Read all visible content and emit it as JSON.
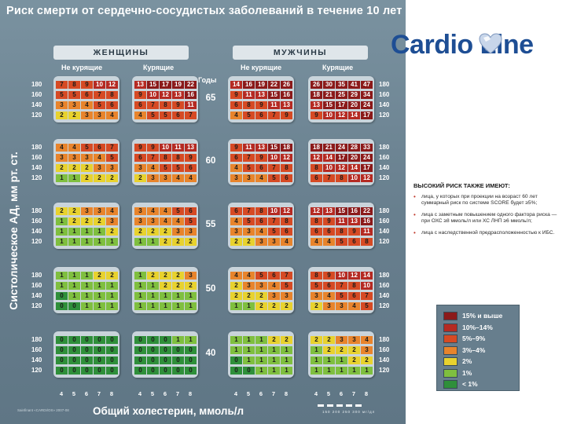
{
  "title": "Риск смерти  от сердечно-сосудистых заболеваний в течение 10 лет",
  "logo": {
    "text": "Cardio Line"
  },
  "sexes": [
    {
      "label": "ЖЕНЩИНЫ",
      "smoking_labels": [
        "Не курящие",
        "Курящие"
      ]
    },
    {
      "label": "МУЖЧИНЫ",
      "smoking_labels": [
        "Не курящие",
        "Курящие"
      ]
    }
  ],
  "age_header": "Годы",
  "y_axis_label": "Систолическое АД, мм рт. ст.",
  "x_axis_label": "Общий холестерин, ммоль/л",
  "fine_print": "Sainfinant «CARDI/OS» 2007-08",
  "scale_ticks": "150 200 250 300 мг/дл",
  "notes": {
    "heading": "ВЫСОКИЙ РИСК ТАКЖЕ ИМЕЮТ:",
    "bullet": "•",
    "items": [
      "лица, у которых при проекции на возраст 60 лет суммарный риск по системе SCORE будет ≥5%;",
      "лица с заметным повышением одного фактора риска — при ОХС ≥8 ммоль/л или ХС ЛНП ≥6 ммоль/л;",
      "лица с наследственной предрасположенностью к ИБС."
    ]
  },
  "legend": [
    {
      "label": "15% и выше",
      "color": "#8b1a1a"
    },
    {
      "label": "10%–14%",
      "color": "#b52a22"
    },
    {
      "label": "5%–9%",
      "color": "#d64a24"
    },
    {
      "label": "3%–4%",
      "color": "#e8842c"
    },
    {
      "label": "2%",
      "color": "#e8d22e"
    },
    {
      "label": "1%",
      "color": "#7fbf3f"
    },
    {
      "label": "< 1%",
      "color": "#2f8f3a"
    }
  ],
  "chart_data": {
    "type": "heatmap",
    "title": "Риск смерти  от сердечно-сосудистых заболеваний в течение 10 лет",
    "xlabel": "Общий холестерин, ммоль/л",
    "ylabel": "Систолическое АД, мм рт. ст.",
    "cholesterol": [
      "4",
      "5",
      "6",
      "7",
      "8"
    ],
    "sbp": [
      "180",
      "160",
      "140",
      "120"
    ],
    "ages": [
      "65",
      "60",
      "55",
      "50",
      "40"
    ],
    "groups": [
      "Женщины, не курящие",
      "Женщины, курящие",
      "Мужчины, не курящие",
      "Мужчины, курящие"
    ],
    "values": [
      [
        [
          [
            7,
            8,
            9,
            10,
            12
          ],
          [
            5,
            5,
            6,
            7,
            8
          ],
          [
            3,
            3,
            4,
            5,
            6
          ],
          [
            2,
            2,
            3,
            3,
            4
          ]
        ],
        [
          [
            13,
            15,
            17,
            19,
            22
          ],
          [
            9,
            10,
            12,
            13,
            16
          ],
          [
            6,
            7,
            8,
            9,
            11
          ],
          [
            4,
            5,
            5,
            6,
            7
          ]
        ],
        [
          [
            14,
            16,
            19,
            22,
            26
          ],
          [
            9,
            11,
            13,
            15,
            16
          ],
          [
            6,
            8,
            9,
            11,
            13
          ],
          [
            4,
            5,
            6,
            7,
            9
          ]
        ],
        [
          [
            26,
            30,
            35,
            41,
            47
          ],
          [
            18,
            21,
            25,
            29,
            34
          ],
          [
            13,
            15,
            17,
            20,
            24
          ],
          [
            9,
            10,
            12,
            14,
            17
          ]
        ]
      ],
      [
        [
          [
            4,
            4,
            5,
            6,
            7
          ],
          [
            3,
            3,
            3,
            4,
            5
          ],
          [
            2,
            2,
            2,
            3,
            3
          ],
          [
            1,
            1,
            2,
            2,
            2
          ]
        ],
        [
          [
            9,
            9,
            10,
            11,
            13
          ],
          [
            6,
            7,
            8,
            8,
            9
          ],
          [
            3,
            4,
            5,
            5,
            6
          ],
          [
            2,
            3,
            3,
            4,
            4
          ]
        ],
        [
          [
            9,
            11,
            13,
            15,
            18
          ],
          [
            6,
            7,
            9,
            10,
            12
          ],
          [
            4,
            5,
            6,
            7,
            8
          ],
          [
            3,
            3,
            4,
            5,
            6
          ]
        ],
        [
          [
            18,
            21,
            24,
            28,
            33
          ],
          [
            12,
            14,
            17,
            20,
            24
          ],
          [
            8,
            10,
            12,
            14,
            17
          ],
          [
            6,
            7,
            8,
            10,
            12
          ]
        ]
      ],
      [
        [
          [
            2,
            2,
            3,
            3,
            4
          ],
          [
            1,
            2,
            2,
            2,
            3
          ],
          [
            1,
            1,
            1,
            1,
            2
          ],
          [
            1,
            1,
            1,
            1,
            1
          ]
        ],
        [
          [
            3,
            4,
            4,
            5,
            6
          ],
          [
            3,
            3,
            4,
            4,
            5
          ],
          [
            2,
            2,
            2,
            3,
            3
          ],
          [
            1,
            1,
            2,
            2,
            2
          ]
        ],
        [
          [
            6,
            7,
            8,
            10,
            12
          ],
          [
            4,
            5,
            6,
            7,
            8
          ],
          [
            3,
            3,
            4,
            5,
            6
          ],
          [
            2,
            2,
            3,
            3,
            4
          ]
        ],
        [
          [
            12,
            13,
            15,
            16,
            22
          ],
          [
            8,
            9,
            11,
            13,
            16
          ],
          [
            6,
            6,
            8,
            9,
            11
          ],
          [
            4,
            4,
            5,
            6,
            8
          ]
        ]
      ],
      [
        [
          [
            1,
            1,
            1,
            2,
            2
          ],
          [
            1,
            1,
            1,
            1,
            1
          ],
          [
            0,
            1,
            1,
            1,
            1
          ],
          [
            0,
            0,
            1,
            1,
            1
          ]
        ],
        [
          [
            1,
            2,
            2,
            2,
            3
          ],
          [
            1,
            1,
            2,
            2,
            2
          ],
          [
            1,
            1,
            1,
            1,
            1
          ],
          [
            1,
            1,
            1,
            1,
            1
          ]
        ],
        [
          [
            4,
            4,
            5,
            6,
            7
          ],
          [
            2,
            3,
            3,
            4,
            5
          ],
          [
            2,
            2,
            2,
            3,
            3
          ],
          [
            1,
            1,
            2,
            2,
            2
          ]
        ],
        [
          [
            8,
            9,
            10,
            12,
            14
          ],
          [
            5,
            6,
            7,
            8,
            10
          ],
          [
            3,
            4,
            5,
            6,
            7
          ],
          [
            2,
            3,
            3,
            4,
            5
          ]
        ]
      ],
      [
        [
          [
            0,
            0,
            0,
            0,
            0
          ],
          [
            0,
            0,
            0,
            0,
            0
          ],
          [
            0,
            0,
            0,
            0,
            0
          ],
          [
            0,
            0,
            0,
            0,
            0
          ]
        ],
        [
          [
            0,
            0,
            0,
            1,
            1
          ],
          [
            0,
            0,
            0,
            0,
            0
          ],
          [
            0,
            0,
            0,
            0,
            0
          ],
          [
            0,
            0,
            0,
            0,
            0
          ]
        ],
        [
          [
            1,
            1,
            1,
            2,
            2
          ],
          [
            1,
            1,
            1,
            1,
            1
          ],
          [
            0,
            1,
            1,
            1,
            1
          ],
          [
            0,
            0,
            1,
            1,
            1
          ]
        ],
        [
          [
            2,
            2,
            3,
            3,
            4
          ],
          [
            1,
            2,
            2,
            2,
            3
          ],
          [
            1,
            1,
            1,
            2,
            2
          ],
          [
            1,
            1,
            1,
            1,
            1
          ]
        ]
      ]
    ]
  }
}
